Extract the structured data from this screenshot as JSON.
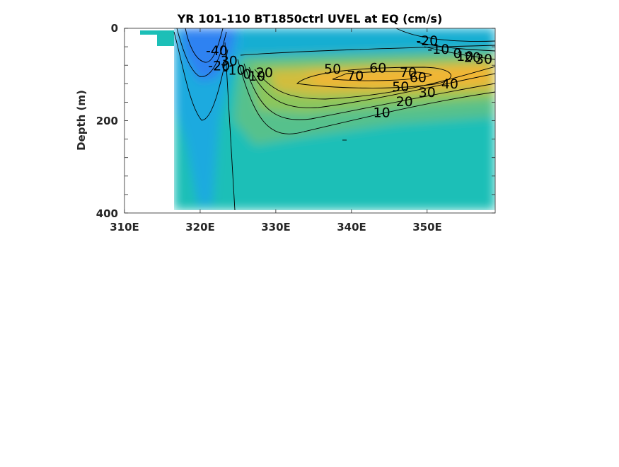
{
  "chart_data": {
    "type": "heatmap",
    "title": "YR 101-110 BT1850ctrl UVEL at EQ (cm/s)",
    "xlabel": "",
    "ylabel": "Depth (m)",
    "xlim": [
      310,
      359
    ],
    "ylim": [
      400,
      0
    ],
    "y_reversed": true,
    "grid": false,
    "x_ticks": [
      310,
      320,
      330,
      340,
      350
    ],
    "x_tick_labels": [
      "310E",
      "320E",
      "330E",
      "340E",
      "350E"
    ],
    "y_ticks": [
      0,
      200,
      400
    ],
    "y_tick_labels": [
      "0",
      "200",
      "400"
    ],
    "colormap": "parula",
    "color_range": [
      -50,
      80
    ],
    "contour_levels": [
      -40,
      -30,
      -20,
      -10,
      0,
      10,
      20,
      30,
      40,
      50,
      60,
      70
    ],
    "contour_labels": [
      {
        "text": "-40",
        "x": 322.2,
        "y": 50
      },
      {
        "text": "-30",
        "x": 323.5,
        "y": 72
      },
      {
        "text": "-20",
        "x": 322.5,
        "y": 83
      },
      {
        "text": "-10",
        "x": 324.5,
        "y": 92
      },
      {
        "text": "0",
        "x": 326.2,
        "y": 100
      },
      {
        "text": "10",
        "x": 327.5,
        "y": 105
      },
      {
        "text": "20",
        "x": 328.5,
        "y": 97
      },
      {
        "text": "50",
        "x": 337.5,
        "y": 90
      },
      {
        "text": "70",
        "x": 340.5,
        "y": 104
      },
      {
        "text": "60",
        "x": 343.5,
        "y": 87
      },
      {
        "text": "70",
        "x": 347.5,
        "y": 97
      },
      {
        "text": "60",
        "x": 348.8,
        "y": 108
      },
      {
        "text": "50",
        "x": 346.5,
        "y": 128
      },
      {
        "text": "30",
        "x": 350.0,
        "y": 140
      },
      {
        "text": "40",
        "x": 353.0,
        "y": 122
      },
      {
        "text": "20",
        "x": 347.0,
        "y": 160
      },
      {
        "text": "10",
        "x": 344.0,
        "y": 184
      },
      {
        "text": "-20",
        "x": 350.0,
        "y": 28
      },
      {
        "text": "-10",
        "x": 351.5,
        "y": 47
      },
      {
        "text": "0",
        "x": 354.0,
        "y": 56
      },
      {
        "text": "10",
        "x": 355.0,
        "y": 62
      },
      {
        "text": "20",
        "x": 356.0,
        "y": 64
      },
      {
        "text": "30",
        "x": 357.5,
        "y": 68
      }
    ]
  }
}
